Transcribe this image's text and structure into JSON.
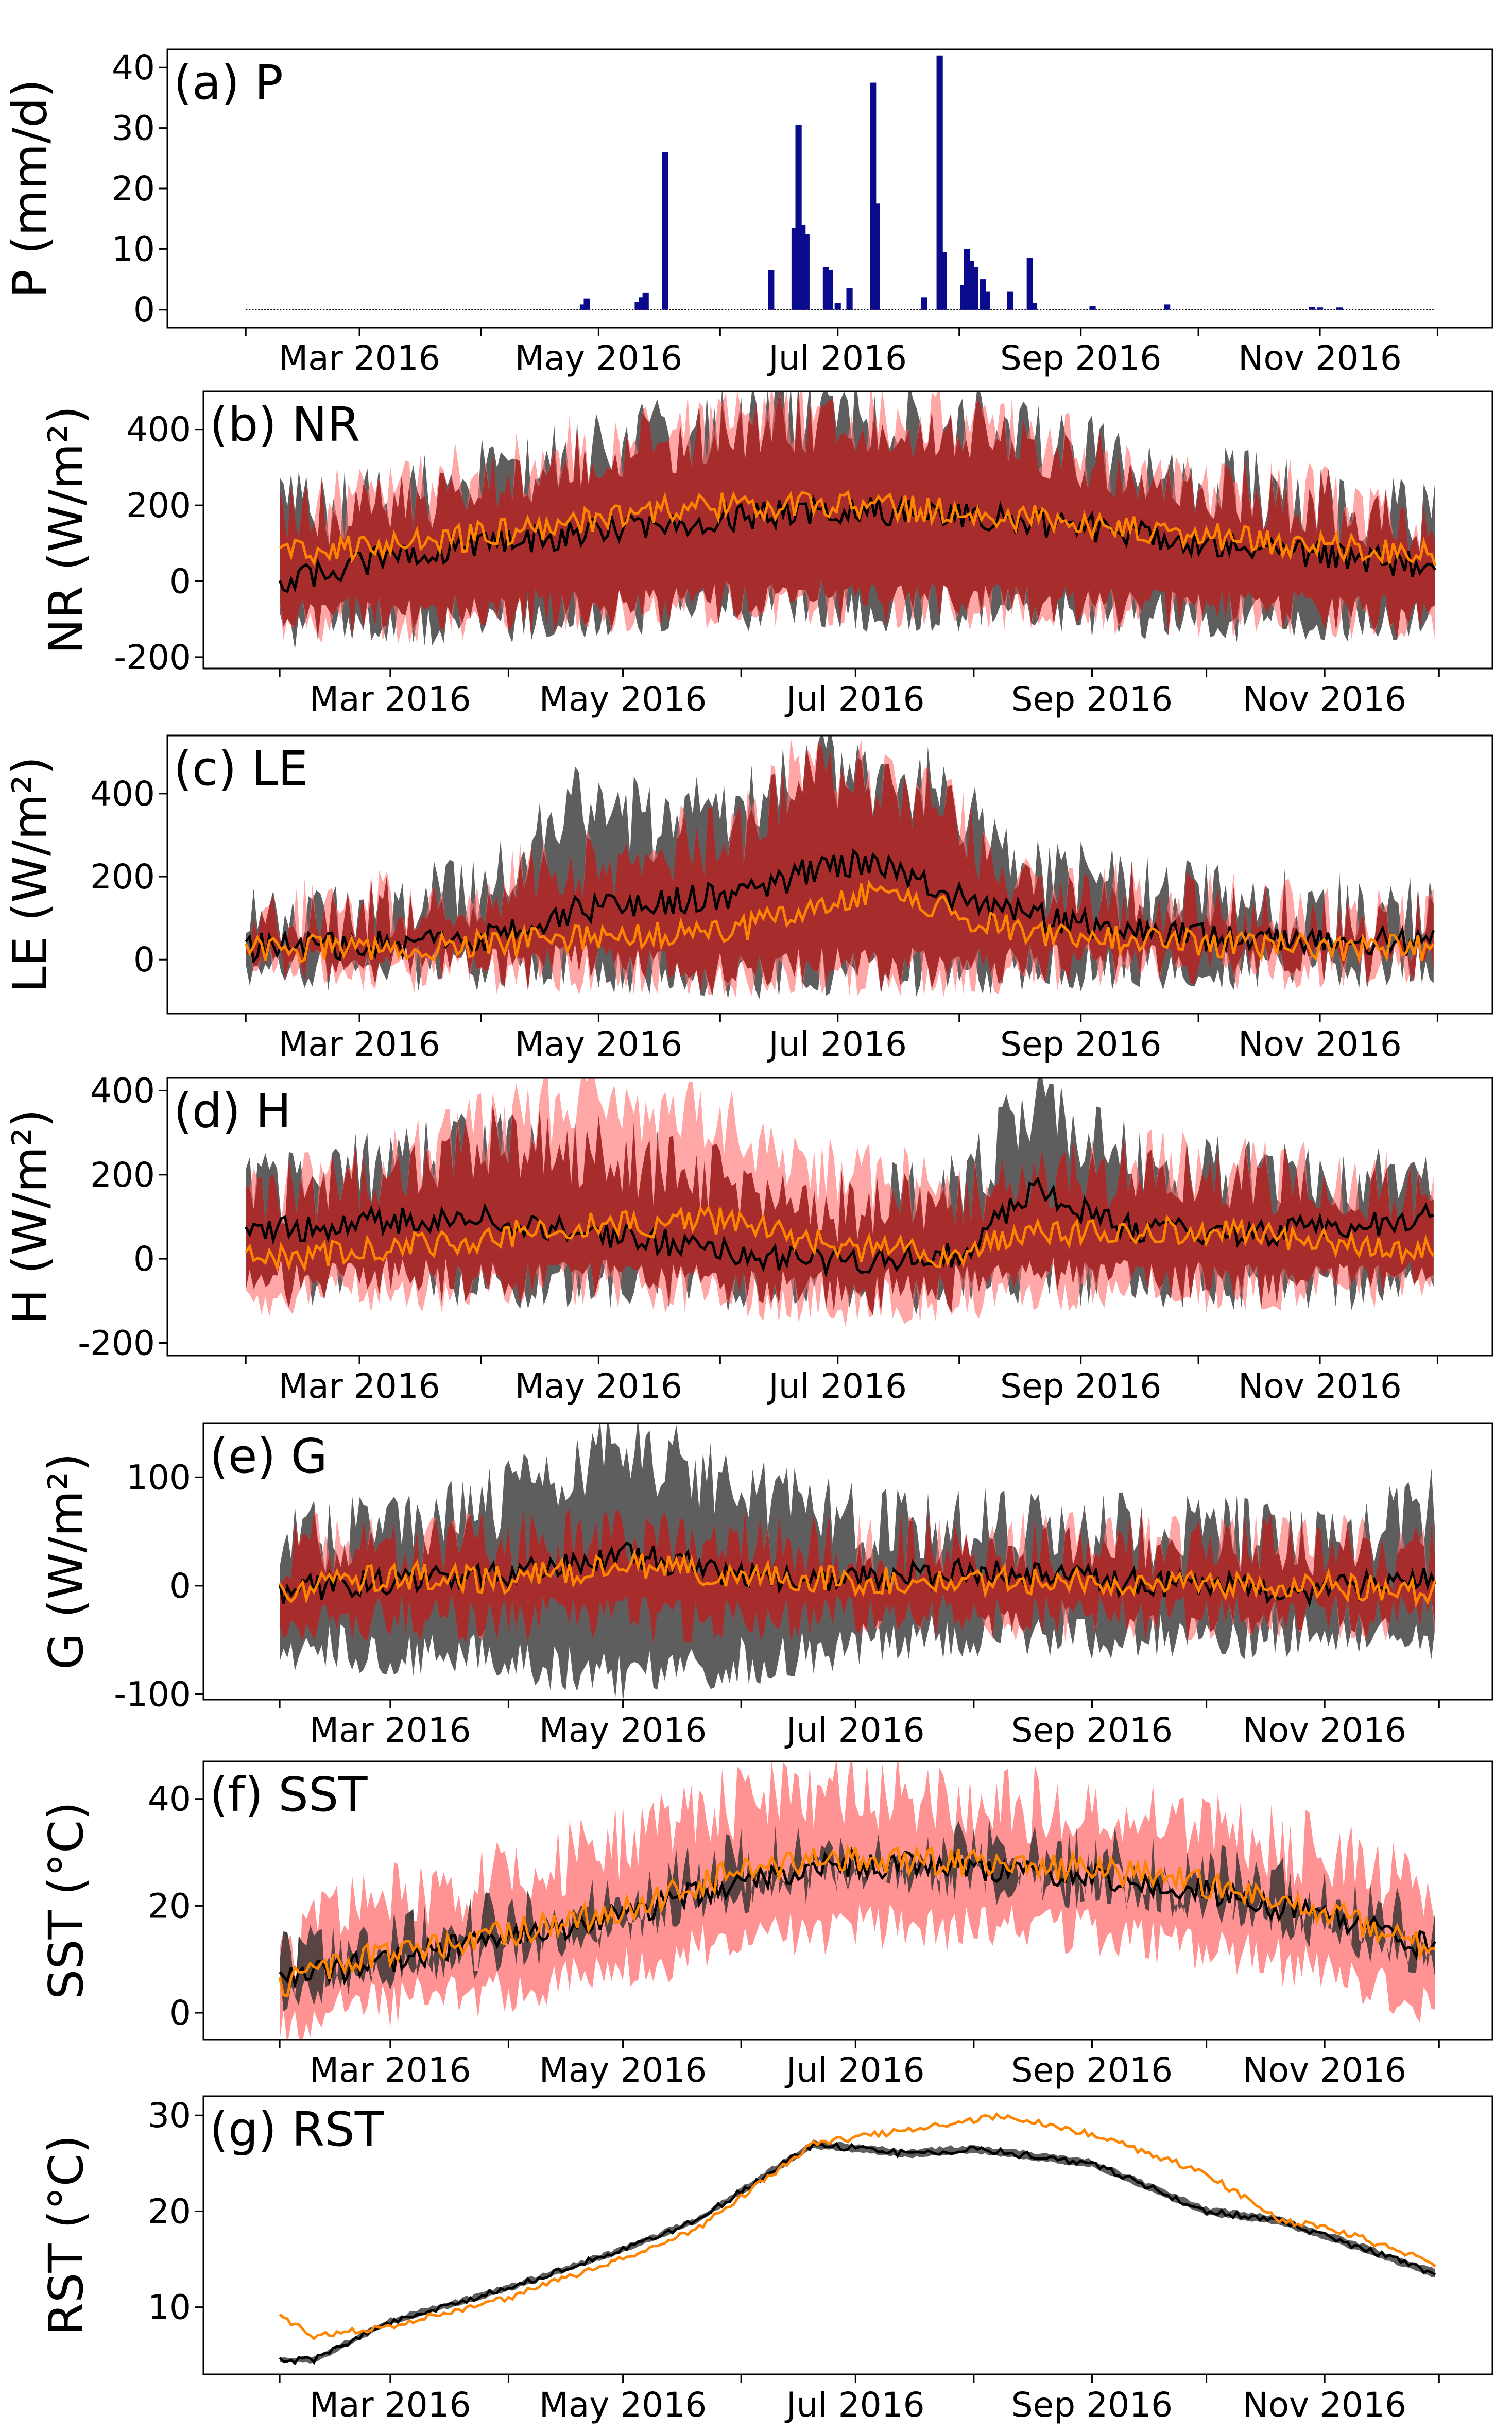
{
  "colors": {
    "obs_band": "#3a3a3a",
    "model_band": "#ff6f6f",
    "overlap_band": "#a01e1e",
    "obs_line": "#000000",
    "model_line": "#ff8400",
    "precip_bar": "#0a0a8c"
  },
  "x_axis": {
    "start": "2016-02-01",
    "end": "2016-11-30",
    "tick_dates": [
      "2016-02-01",
      "2016-03-01",
      "2016-04-01",
      "2016-05-01",
      "2016-06-01",
      "2016-07-01",
      "2016-08-01",
      "2016-09-01",
      "2016-10-01",
      "2016-11-01",
      "2016-12-01"
    ],
    "labels": [
      {
        "date": "2016-03-01",
        "text": "Mar 2016"
      },
      {
        "date": "2016-05-01",
        "text": "May 2016"
      },
      {
        "date": "2016-07-01",
        "text": "Jul 2016"
      },
      {
        "date": "2016-09-01",
        "text": "Sep 2016"
      },
      {
        "date": "2016-11-01",
        "text": "Nov 2016"
      }
    ]
  },
  "chart_data": [
    {
      "type": "bar",
      "panel_label": "(a) P",
      "ylabel": "P (mm/d)",
      "ylim": [
        -3,
        43
      ],
      "yticks": [
        0,
        10,
        20,
        30,
        40
      ],
      "bars": [
        {
          "x": "2016-04-27",
          "y": 0.8
        },
        {
          "x": "2016-04-28",
          "y": 1.8
        },
        {
          "x": "2016-05-11",
          "y": 1.2
        },
        {
          "x": "2016-05-12",
          "y": 2.0
        },
        {
          "x": "2016-05-13",
          "y": 2.8
        },
        {
          "x": "2016-05-18",
          "y": 26
        },
        {
          "x": "2016-06-14",
          "y": 6.5
        },
        {
          "x": "2016-06-20",
          "y": 13.5
        },
        {
          "x": "2016-06-21",
          "y": 30.5
        },
        {
          "x": "2016-06-22",
          "y": 14
        },
        {
          "x": "2016-06-23",
          "y": 12.5
        },
        {
          "x": "2016-06-28",
          "y": 7
        },
        {
          "x": "2016-06-29",
          "y": 6.5
        },
        {
          "x": "2016-07-01",
          "y": 1
        },
        {
          "x": "2016-07-04",
          "y": 3.5
        },
        {
          "x": "2016-07-10",
          "y": 37.5
        },
        {
          "x": "2016-07-11",
          "y": 17.5
        },
        {
          "x": "2016-07-23",
          "y": 2
        },
        {
          "x": "2016-07-27",
          "y": 42
        },
        {
          "x": "2016-07-28",
          "y": 9.5
        },
        {
          "x": "2016-08-02",
          "y": 4
        },
        {
          "x": "2016-08-03",
          "y": 10
        },
        {
          "x": "2016-08-04",
          "y": 8
        },
        {
          "x": "2016-08-05",
          "y": 7
        },
        {
          "x": "2016-08-07",
          "y": 5
        },
        {
          "x": "2016-08-08",
          "y": 3
        },
        {
          "x": "2016-08-14",
          "y": 3
        },
        {
          "x": "2016-08-19",
          "y": 8.5
        },
        {
          "x": "2016-08-20",
          "y": 1
        },
        {
          "x": "2016-09-04",
          "y": 0.5
        },
        {
          "x": "2016-09-23",
          "y": 0.8
        },
        {
          "x": "2016-10-30",
          "y": 0.4
        },
        {
          "x": "2016-11-01",
          "y": 0.3
        },
        {
          "x": "2016-11-06",
          "y": 0.3
        }
      ]
    },
    {
      "type": "line",
      "panel_label": "(b) NR",
      "ylabel": "NR (W/m²)",
      "ylim": [
        -230,
        500
      ],
      "yticks": [
        -200,
        0,
        200,
        400
      ],
      "series": [
        {
          "role": "observed",
          "x": [
            "2016-02-01",
            "2016-03-01",
            "2016-04-01",
            "2016-05-01",
            "2016-06-01",
            "2016-07-01",
            "2016-08-01",
            "2016-09-01",
            "2016-10-01",
            "2016-11-01",
            "2016-11-30"
          ],
          "mean": [
            -10,
            70,
            100,
            140,
            170,
            190,
            170,
            140,
            100,
            70,
            40
          ],
          "lower": [
            -120,
            -110,
            -100,
            -80,
            -70,
            -70,
            -75,
            -85,
            -95,
            -100,
            -100
          ],
          "upper": [
            180,
            220,
            290,
            360,
            420,
            450,
            420,
            340,
            270,
            200,
            170
          ]
        },
        {
          "role": "model",
          "x": [
            "2016-02-01",
            "2016-03-01",
            "2016-04-01",
            "2016-05-01",
            "2016-06-01",
            "2016-07-01",
            "2016-08-01",
            "2016-09-01",
            "2016-10-01",
            "2016-11-01",
            "2016-11-30"
          ],
          "mean": [
            75,
            90,
            130,
            180,
            200,
            200,
            180,
            150,
            120,
            90,
            70
          ],
          "lower": [
            -110,
            -100,
            -90,
            -70,
            -60,
            -60,
            -65,
            -75,
            -85,
            -90,
            -95
          ],
          "upper": [
            170,
            220,
            300,
            370,
            420,
            440,
            410,
            330,
            260,
            200,
            160
          ]
        }
      ]
    },
    {
      "type": "line",
      "panel_label": "(c) LE",
      "ylabel": "LE (W/m²)",
      "ylim": [
        -130,
        540
      ],
      "yticks": [
        0,
        200,
        400
      ],
      "series": [
        {
          "role": "observed",
          "x": [
            "2016-02-01",
            "2016-03-01",
            "2016-04-01",
            "2016-04-25",
            "2016-05-15",
            "2016-06-10",
            "2016-06-25",
            "2016-07-10",
            "2016-07-28",
            "2016-08-15",
            "2016-09-15",
            "2016-10-15",
            "2016-11-30"
          ],
          "mean": [
            30,
            35,
            45,
            120,
            140,
            160,
            220,
            240,
            160,
            110,
            70,
            50,
            40
          ],
          "lower": [
            -20,
            -20,
            -25,
            -20,
            -30,
            -40,
            -30,
            -20,
            -40,
            -20,
            -15,
            -15,
            -10
          ],
          "upper": [
            90,
            110,
            170,
            400,
            330,
            380,
            480,
            430,
            420,
            220,
            170,
            130,
            100
          ]
        },
        {
          "role": "model",
          "x": [
            "2016-02-01",
            "2016-03-01",
            "2016-04-01",
            "2016-04-25",
            "2016-05-15",
            "2016-06-10",
            "2016-06-25",
            "2016-07-10",
            "2016-07-28",
            "2016-08-15",
            "2016-09-15",
            "2016-10-15",
            "2016-11-30"
          ],
          "mean": [
            25,
            30,
            35,
            50,
            60,
            80,
            130,
            160,
            120,
            70,
            45,
            35,
            25
          ],
          "lower": [
            -20,
            -20,
            -25,
            -25,
            -30,
            -40,
            -30,
            -30,
            -35,
            -20,
            -15,
            -15,
            -10
          ],
          "upper": [
            90,
            120,
            160,
            220,
            260,
            330,
            520,
            420,
            360,
            190,
            140,
            110,
            80
          ]
        }
      ]
    },
    {
      "type": "line",
      "panel_label": "(d) H",
      "ylabel": "H (W/m²)",
      "ylim": [
        -230,
        430
      ],
      "yticks": [
        -200,
        0,
        200,
        400
      ],
      "series": [
        {
          "role": "observed",
          "x": [
            "2016-02-01",
            "2016-03-01",
            "2016-04-01",
            "2016-05-01",
            "2016-06-01",
            "2016-07-01",
            "2016-08-01",
            "2016-08-20",
            "2016-09-15",
            "2016-10-15",
            "2016-11-30"
          ],
          "mean": [
            60,
            90,
            100,
            60,
            20,
            -10,
            10,
            160,
            70,
            60,
            100
          ],
          "lower": [
            -60,
            -50,
            -60,
            -60,
            -70,
            -80,
            -70,
            -50,
            -60,
            -70,
            -60
          ],
          "upper": [
            160,
            210,
            280,
            250,
            180,
            120,
            160,
            380,
            230,
            200,
            160
          ]
        },
        {
          "role": "model",
          "x": [
            "2016-02-01",
            "2016-03-01",
            "2016-04-01",
            "2016-05-01",
            "2016-06-01",
            "2016-07-01",
            "2016-08-01",
            "2016-08-20",
            "2016-09-15",
            "2016-10-15",
            "2016-11-30"
          ],
          "mean": [
            0,
            20,
            50,
            80,
            90,
            30,
            10,
            60,
            70,
            60,
            20
          ],
          "lower": [
            -80,
            -80,
            -70,
            -60,
            -80,
            -110,
            -90,
            -70,
            -70,
            -70,
            -60
          ],
          "upper": [
            140,
            200,
            300,
            380,
            320,
            200,
            160,
            180,
            220,
            200,
            160
          ]
        }
      ]
    },
    {
      "type": "line",
      "panel_label": "(e) G",
      "ylabel": "G (W/m²)",
      "ylim": [
        -105,
        150
      ],
      "yticks": [
        -100,
        0,
        100
      ],
      "series": [
        {
          "role": "observed",
          "x": [
            "2016-02-01",
            "2016-03-01",
            "2016-04-01",
            "2016-05-01",
            "2016-06-01",
            "2016-07-01",
            "2016-08-01",
            "2016-09-01",
            "2016-10-01",
            "2016-11-01",
            "2016-11-30"
          ],
          "mean": [
            -5,
            5,
            10,
            30,
            10,
            5,
            15,
            5,
            0,
            -5,
            10
          ],
          "lower": [
            -55,
            -60,
            -70,
            -85,
            -70,
            -55,
            -45,
            -45,
            -45,
            -45,
            -50
          ],
          "upper": [
            40,
            55,
            80,
            130,
            90,
            60,
            60,
            50,
            50,
            40,
            75
          ]
        },
        {
          "role": "model",
          "x": [
            "2016-02-01",
            "2016-03-01",
            "2016-04-01",
            "2016-05-01",
            "2016-06-01",
            "2016-07-01",
            "2016-08-01",
            "2016-09-01",
            "2016-10-01",
            "2016-11-01",
            "2016-11-30"
          ],
          "mean": [
            -5,
            10,
            5,
            20,
            10,
            5,
            5,
            5,
            0,
            0,
            -5
          ],
          "lower": [
            -30,
            -30,
            -30,
            -30,
            -35,
            -30,
            -30,
            -30,
            -30,
            -30,
            -30
          ],
          "upper": [
            30,
            35,
            35,
            40,
            40,
            35,
            35,
            35,
            35,
            30,
            30
          ]
        }
      ]
    },
    {
      "type": "line",
      "panel_label": "(f) SST",
      "ylabel": "SST (°C)",
      "ylim": [
        -5,
        47
      ],
      "yticks": [
        0,
        20,
        40
      ],
      "series": [
        {
          "role": "observed",
          "x": [
            "2016-02-01",
            "2016-02-15",
            "2016-03-01",
            "2016-04-01",
            "2016-05-01",
            "2016-06-01",
            "2016-07-01",
            "2016-08-01",
            "2016-09-01",
            "2016-10-01",
            "2016-11-01",
            "2016-11-30"
          ],
          "mean": [
            6,
            8,
            10,
            14,
            18,
            25,
            28,
            27,
            26,
            23,
            18,
            12
          ],
          "lower": [
            4,
            6,
            8,
            12,
            16,
            23,
            26,
            25,
            24,
            21,
            16,
            10
          ],
          "upper": [
            8,
            10,
            12,
            16,
            20,
            27,
            30,
            29,
            28,
            25,
            20,
            14
          ]
        },
        {
          "role": "model",
          "x": [
            "2016-02-01",
            "2016-02-15",
            "2016-03-01",
            "2016-04-01",
            "2016-05-01",
            "2016-06-01",
            "2016-07-01",
            "2016-08-01",
            "2016-09-01",
            "2016-10-01",
            "2016-11-01",
            "2016-11-30"
          ],
          "mean": [
            5,
            9,
            11,
            15,
            19,
            27,
            29,
            28,
            27,
            24,
            19,
            12
          ],
          "lower": [
            -2,
            0,
            2,
            4,
            8,
            14,
            16,
            16,
            15,
            12,
            8,
            2
          ],
          "upper": [
            12,
            18,
            22,
            26,
            32,
            40,
            42,
            40,
            38,
            34,
            30,
            22
          ]
        }
      ]
    },
    {
      "type": "line",
      "panel_label": "(g) RST",
      "ylabel": "RST (°C)",
      "ylim": [
        3,
        32
      ],
      "yticks": [
        10,
        20,
        30
      ],
      "series": [
        {
          "role": "observed",
          "x": [
            "2016-02-01",
            "2016-02-10",
            "2016-03-01",
            "2016-04-01",
            "2016-05-01",
            "2016-05-20",
            "2016-06-20",
            "2016-07-15",
            "2016-08-01",
            "2016-09-01",
            "2016-10-01",
            "2016-10-20",
            "2016-11-01",
            "2016-11-30"
          ],
          "mean": [
            4.5,
            4.5,
            8.5,
            12,
            16,
            19,
            27,
            26,
            26.5,
            25,
            20,
            19,
            17.5,
            13.5
          ],
          "lower": [
            4.2,
            4.2,
            8.2,
            11.7,
            15.7,
            18.7,
            26.6,
            25.6,
            26.1,
            24.6,
            19.6,
            18.6,
            17.1,
            13.1
          ],
          "upper": [
            4.8,
            4.8,
            8.8,
            12.3,
            16.3,
            19.3,
            27.4,
            26.4,
            26.9,
            25.4,
            20.4,
            19.4,
            17.9,
            13.9
          ]
        },
        {
          "role": "model",
          "x": [
            "2016-02-01",
            "2016-02-10",
            "2016-03-01",
            "2016-04-01",
            "2016-05-01",
            "2016-05-20",
            "2016-06-20",
            "2016-07-15",
            "2016-08-10",
            "2016-09-01",
            "2016-10-01",
            "2016-10-20",
            "2016-11-01",
            "2016-11-30"
          ],
          "mean": [
            9,
            7,
            8,
            11,
            15,
            18,
            27,
            28.5,
            30,
            28,
            24,
            19,
            18.5,
            14.5
          ]
        }
      ]
    }
  ]
}
